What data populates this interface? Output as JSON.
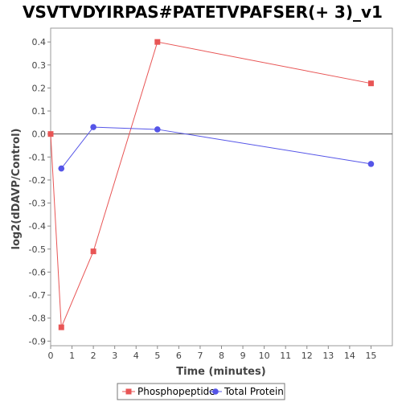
{
  "chart_data": {
    "type": "line",
    "title": "VSVTVDYIRPAS#PATETVPAFSER(+ 3)_v1",
    "xlabel": "Time (minutes)",
    "ylabel": "log2(dDAVP/Control)",
    "xlim": [
      0,
      16.0
    ],
    "ylim": [
      -0.92,
      0.46
    ],
    "x_ticks": [
      0,
      1,
      2,
      3,
      4,
      5,
      6,
      7,
      8,
      9,
      10,
      11,
      12,
      13,
      14,
      15
    ],
    "y_ticks": [
      0.4,
      0.3,
      0.2,
      0.1,
      0.0,
      -0.1,
      -0.2,
      -0.3,
      -0.4,
      -0.5,
      -0.6,
      -0.7,
      -0.8,
      -0.9
    ],
    "y_tick_labels": [
      "0.4",
      "0.3",
      "0.2",
      "0.1",
      "0.0",
      "-0.1",
      "-0.2",
      "-0.3",
      "-0.4",
      "-0.5",
      "-0.6",
      "-0.7",
      "-0.8",
      "-0.9"
    ],
    "reference_line": 0.0,
    "legend_position": "bottom",
    "series": [
      {
        "name": "Phosphopeptide",
        "color": "#e85555",
        "marker": "square",
        "x": [
          0,
          0.5,
          2,
          5,
          15
        ],
        "y": [
          0.0,
          -0.84,
          -0.51,
          0.4,
          0.22
        ]
      },
      {
        "name": "Total Protein",
        "color": "#5555e8",
        "marker": "circle",
        "x": [
          0.5,
          2,
          5,
          15
        ],
        "y": [
          -0.15,
          0.03,
          0.02,
          -0.13
        ]
      }
    ]
  }
}
